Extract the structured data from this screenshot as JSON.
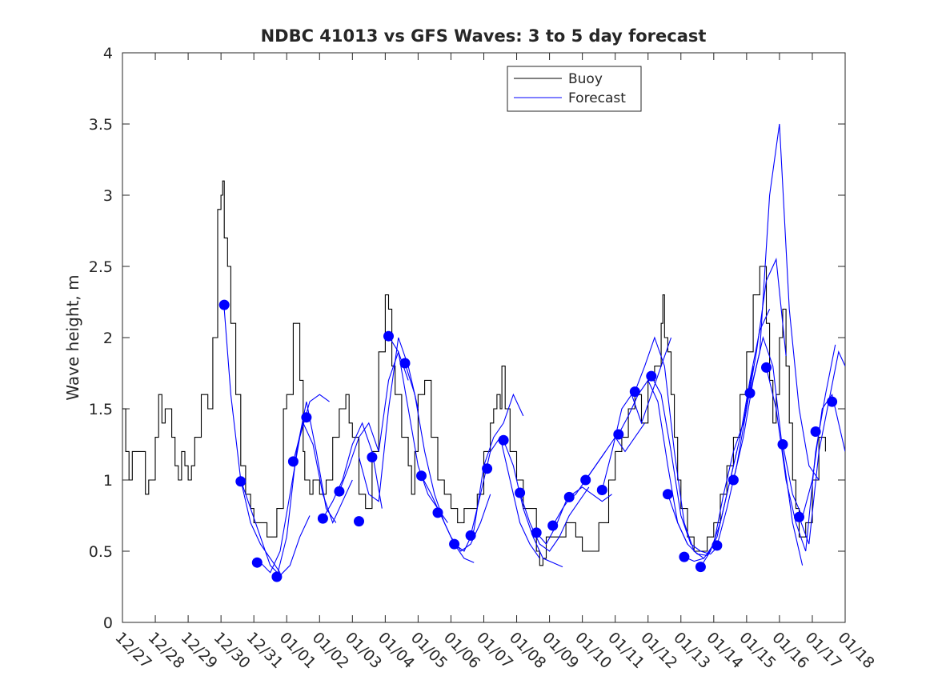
{
  "chart_data": {
    "type": "line",
    "title": "NDBC 41013 vs GFS Waves: 3 to 5 day forecast",
    "xlabel": "",
    "ylabel": "Wave height, m",
    "ylim": [
      0,
      4
    ],
    "yticks": [
      0,
      0.5,
      1,
      1.5,
      2,
      2.5,
      3,
      3.5,
      4
    ],
    "ytick_labels": [
      "0",
      "0.5",
      "1",
      "1.5",
      "2",
      "2.5",
      "3",
      "3.5",
      "4"
    ],
    "xlim": [
      0,
      22
    ],
    "xtick_labels": [
      "12/27",
      "12/28",
      "12/29",
      "12/30",
      "12/31",
      "01/01",
      "01/02",
      "01/03",
      "01/04",
      "01/05",
      "01/06",
      "01/07",
      "01/08",
      "01/09",
      "01/10",
      "01/11",
      "01/12",
      "01/13",
      "01/14",
      "01/15",
      "01/16",
      "01/17",
      "01/18"
    ],
    "legend": {
      "position": "top-center",
      "entries": [
        "Buoy",
        "Forecast"
      ]
    },
    "colors": {
      "buoy": "#000000",
      "forecast": "#0000ff",
      "axes": "#262626"
    },
    "buoy": {
      "name": "Buoy",
      "x": [
        0,
        0.1,
        0.2,
        0.3,
        0.5,
        0.7,
        0.8,
        1.0,
        1.1,
        1.2,
        1.3,
        1.5,
        1.6,
        1.7,
        1.8,
        1.9,
        2.0,
        2.1,
        2.2,
        2.4,
        2.6,
        2.75,
        2.9,
        3.0,
        3.05,
        3.1,
        3.2,
        3.3,
        3.45,
        3.6,
        3.75,
        3.9,
        4.0,
        4.2,
        4.4,
        4.5,
        4.7,
        4.9,
        5.0,
        5.2,
        5.4,
        5.5,
        5.55,
        5.7,
        5.8,
        6.0,
        6.2,
        6.4,
        6.6,
        6.8,
        6.9,
        7.0,
        7.2,
        7.4,
        7.6,
        7.8,
        8.0,
        8.1,
        8.2,
        8.3,
        8.5,
        8.7,
        8.8,
        8.9,
        9.0,
        9.2,
        9.4,
        9.6,
        9.8,
        10.0,
        10.2,
        10.4,
        10.6,
        10.8,
        11.0,
        11.2,
        11.3,
        11.4,
        11.5,
        11.55,
        11.65,
        11.8,
        12.0,
        12.2,
        12.4,
        12.6,
        12.7,
        12.8,
        12.9,
        13.0,
        13.2,
        13.5,
        13.8,
        14.0,
        14.2,
        14.5,
        14.8,
        15.0,
        15.2,
        15.4,
        15.6,
        15.8,
        16.0,
        16.2,
        16.4,
        16.45,
        16.5,
        16.6,
        16.7,
        16.8,
        16.9,
        17.0,
        17.2,
        17.4,
        17.6,
        17.8,
        18.0,
        18.2,
        18.4,
        18.6,
        18.8,
        19.0,
        19.2,
        19.4,
        19.6,
        19.7,
        19.8,
        19.9,
        20.0,
        20.1,
        20.2,
        20.3,
        20.4,
        20.5,
        20.6,
        20.8,
        21.0,
        21.2,
        21.4
      ],
      "values": [
        1.5,
        1.2,
        1.0,
        1.2,
        1.2,
        0.9,
        1.0,
        1.3,
        1.6,
        1.4,
        1.5,
        1.3,
        1.1,
        1.0,
        1.2,
        1.1,
        1.0,
        1.1,
        1.3,
        1.6,
        1.5,
        2.0,
        2.9,
        3.0,
        3.1,
        2.7,
        2.5,
        2.1,
        1.6,
        1.1,
        0.9,
        0.8,
        0.7,
        0.7,
        0.6,
        0.6,
        0.8,
        1.5,
        1.6,
        2.1,
        1.7,
        1.2,
        1.0,
        0.9,
        1.0,
        0.9,
        1.0,
        1.3,
        1.5,
        1.6,
        1.4,
        1.3,
        0.9,
        0.8,
        1.2,
        1.9,
        2.3,
        2.2,
        1.8,
        1.6,
        1.3,
        1.1,
        0.9,
        1.2,
        1.6,
        1.7,
        1.3,
        1.0,
        0.9,
        0.8,
        0.7,
        0.8,
        0.8,
        0.9,
        1.2,
        1.4,
        1.5,
        1.6,
        1.5,
        1.8,
        1.5,
        1.2,
        1.0,
        0.8,
        0.8,
        0.5,
        0.4,
        0.45,
        0.6,
        0.6,
        0.6,
        0.7,
        0.6,
        0.5,
        0.5,
        0.7,
        1.0,
        1.2,
        1.3,
        1.5,
        1.6,
        1.4,
        1.7,
        1.8,
        2.1,
        2.3,
        2.0,
        1.9,
        1.6,
        1.3,
        1.0,
        0.8,
        0.6,
        0.5,
        0.5,
        0.6,
        0.7,
        0.9,
        1.1,
        1.3,
        1.6,
        1.9,
        2.3,
        2.5,
        2.1,
        1.7,
        1.4,
        1.6,
        2.0,
        2.2,
        1.8,
        1.4,
        1.0,
        0.8,
        0.6,
        0.7,
        1.0,
        1.3,
        1.2
      ]
    },
    "forecast_series": [
      {
        "x": [
          3.1,
          3.3,
          3.6,
          3.9,
          4.2,
          4.5,
          4.8
        ],
        "values": [
          2.2,
          1.6,
          1.0,
          0.7,
          0.55,
          0.45,
          0.35
        ]
      },
      {
        "x": [
          3.6,
          3.9,
          4.2,
          4.5,
          4.8,
          5.1,
          5.4,
          5.7
        ],
        "values": [
          1.0,
          0.8,
          0.6,
          0.4,
          0.33,
          0.4,
          0.6,
          0.75
        ]
      },
      {
        "x": [
          4.2,
          4.5,
          4.8,
          5.1,
          5.4,
          5.7,
          6.0,
          6.3
        ],
        "values": [
          0.42,
          0.35,
          0.5,
          0.9,
          1.3,
          1.55,
          1.6,
          1.55
        ]
      },
      {
        "x": [
          4.7,
          5.0,
          5.3,
          5.6,
          5.9,
          6.2,
          6.5
        ],
        "values": [
          0.32,
          0.6,
          1.2,
          1.55,
          1.2,
          0.8,
          0.7
        ]
      },
      {
        "x": [
          5.2,
          5.5,
          5.8,
          6.1,
          6.4,
          6.7,
          7.0
        ],
        "values": [
          1.13,
          1.4,
          1.25,
          0.9,
          0.7,
          0.85,
          1.0
        ]
      },
      {
        "x": [
          6.1,
          6.4,
          6.7,
          7.0,
          7.3,
          7.6,
          7.9
        ],
        "values": [
          0.73,
          0.85,
          1.0,
          1.25,
          1.4,
          1.2,
          0.8
        ]
      },
      {
        "x": [
          6.6,
          6.9,
          7.2,
          7.5,
          7.8,
          8.1,
          8.4,
          8.7
        ],
        "values": [
          0.92,
          1.1,
          1.3,
          1.4,
          1.2,
          1.7,
          1.9,
          1.7
        ]
      },
      {
        "x": [
          7.2,
          7.5,
          7.8,
          8.1,
          8.4,
          8.7,
          9.0
        ],
        "values": [
          1.16,
          0.9,
          0.85,
          1.5,
          2.0,
          1.8,
          1.5
        ]
      },
      {
        "x": [
          8.1,
          8.4,
          8.7,
          9.0,
          9.3,
          9.6,
          9.9
        ],
        "values": [
          2.01,
          1.9,
          1.5,
          1.1,
          0.9,
          0.8,
          0.7
        ]
      },
      {
        "x": [
          8.6,
          8.9,
          9.2,
          9.5,
          9.8,
          10.1,
          10.4,
          10.7
        ],
        "values": [
          1.82,
          1.6,
          1.2,
          0.9,
          0.7,
          0.55,
          0.45,
          0.42
        ]
      },
      {
        "x": [
          9.1,
          9.4,
          9.7,
          10.0,
          10.3,
          10.6,
          10.9,
          11.2
        ],
        "values": [
          1.03,
          0.9,
          0.75,
          0.6,
          0.5,
          0.55,
          0.7,
          0.9
        ]
      },
      {
        "x": [
          10.1,
          10.4,
          10.7,
          11.0,
          11.3,
          11.6,
          11.9,
          12.2
        ],
        "values": [
          0.55,
          0.5,
          0.65,
          1.1,
          1.3,
          1.4,
          1.6,
          1.45
        ]
      },
      {
        "x": [
          10.6,
          10.9,
          11.2,
          11.5,
          11.8,
          12.1,
          12.4,
          12.7
        ],
        "values": [
          0.61,
          0.9,
          1.2,
          1.3,
          1.0,
          0.7,
          0.55,
          0.45
        ]
      },
      {
        "x": [
          11.6,
          11.9,
          12.2,
          12.5,
          12.8,
          13.1,
          13.4
        ],
        "values": [
          1.28,
          1.1,
          0.8,
          0.6,
          0.45,
          0.42,
          0.39
        ]
      },
      {
        "x": [
          12.1,
          12.4,
          12.7,
          13.0,
          13.3,
          13.6,
          13.9,
          14.2
        ],
        "values": [
          0.91,
          0.7,
          0.55,
          0.5,
          0.6,
          0.75,
          0.85,
          0.95
        ]
      },
      {
        "x": [
          12.6,
          12.9,
          13.2,
          13.5,
          13.8,
          14.1,
          14.4,
          14.7
        ],
        "values": [
          0.63,
          0.55,
          0.68,
          0.85,
          0.9,
          1.0,
          1.1,
          1.2
        ]
      },
      {
        "x": [
          13.1,
          13.4,
          13.7,
          14.0,
          14.3,
          14.6,
          14.9
        ],
        "values": [
          0.68,
          0.8,
          0.9,
          0.95,
          0.9,
          0.85,
          0.9
        ]
      },
      {
        "x": [
          14.1,
          14.4,
          14.7,
          15.0,
          15.3,
          15.6,
          15.9
        ],
        "values": [
          1.0,
          1.1,
          1.2,
          1.3,
          1.2,
          1.3,
          1.4
        ]
      },
      {
        "x": [
          14.6,
          14.9,
          15.2,
          15.5,
          15.8,
          16.1,
          16.4,
          16.7
        ],
        "values": [
          0.93,
          1.2,
          1.5,
          1.6,
          1.4,
          1.6,
          1.8,
          2.0
        ]
      },
      {
        "x": [
          15.1,
          15.4,
          15.7,
          16.0,
          16.3,
          16.6,
          16.9,
          17.2
        ],
        "values": [
          1.32,
          1.45,
          1.6,
          1.7,
          1.55,
          1.1,
          0.7,
          0.55
        ]
      },
      {
        "x": [
          15.6,
          15.9,
          16.2,
          16.5,
          16.8,
          17.1,
          17.4,
          17.7
        ],
        "values": [
          1.62,
          1.8,
          2.0,
          1.8,
          1.2,
          0.7,
          0.5,
          0.45
        ]
      },
      {
        "x": [
          16.1,
          16.4,
          16.7,
          17.0,
          17.3,
          17.6,
          17.9,
          18.2
        ],
        "values": [
          1.73,
          1.6,
          1.2,
          0.75,
          0.55,
          0.5,
          0.48,
          0.55
        ]
      },
      {
        "x": [
          16.6,
          16.9,
          17.2,
          17.5,
          17.8,
          18.1,
          18.4,
          18.7
        ],
        "values": [
          0.9,
          0.7,
          0.55,
          0.48,
          0.47,
          0.6,
          0.9,
          1.2
        ]
      },
      {
        "x": [
          17.1,
          17.4,
          17.7,
          18.0,
          18.3,
          18.6,
          18.9,
          19.2
        ],
        "values": [
          0.46,
          0.43,
          0.45,
          0.55,
          0.9,
          1.2,
          1.4,
          1.8
        ]
      },
      {
        "x": [
          17.6,
          17.9,
          18.2,
          18.5,
          18.8,
          19.1,
          19.4,
          19.7
        ],
        "values": [
          0.39,
          0.5,
          0.7,
          1.0,
          1.3,
          1.7,
          2.05,
          2.2
        ]
      },
      {
        "x": [
          18.1,
          18.4,
          18.7,
          19.0,
          19.3,
          19.6,
          19.9,
          20.2
        ],
        "values": [
          0.54,
          0.8,
          1.1,
          1.5,
          1.9,
          2.4,
          2.55,
          1.87
        ]
      },
      {
        "x": [
          18.6,
          18.9,
          19.2,
          19.5,
          19.8,
          20.1,
          20.4,
          20.7
        ],
        "values": [
          1.0,
          1.3,
          1.7,
          2.0,
          1.8,
          1.2,
          0.7,
          0.4
        ]
      },
      {
        "x": [
          19.1,
          19.4,
          19.7,
          20.0,
          20.3,
          20.6,
          20.9,
          21.2
        ],
        "values": [
          1.61,
          1.9,
          3.0,
          3.5,
          2.2,
          1.5,
          1.1,
          1.0
        ]
      },
      {
        "x": [
          19.6,
          19.9,
          20.2,
          20.5,
          20.8,
          21.1,
          21.4,
          21.7
        ],
        "values": [
          1.79,
          1.5,
          1.0,
          0.7,
          0.5,
          1.2,
          1.6,
          1.95
        ]
      },
      {
        "x": [
          20.1,
          20.4,
          20.7,
          21.0,
          21.3,
          21.6,
          21.9,
          22.0
        ],
        "values": [
          1.25,
          0.9,
          0.74,
          1.0,
          1.5,
          1.6,
          1.3,
          1.2
        ]
      },
      {
        "x": [
          20.6,
          20.9,
          21.2,
          21.5,
          21.8,
          22.0
        ],
        "values": [
          0.74,
          0.55,
          1.2,
          1.55,
          1.9,
          1.8
        ]
      }
    ],
    "forecast_markers": {
      "x": [
        3.1,
        3.6,
        4.1,
        4.7,
        5.2,
        5.6,
        6.1,
        6.6,
        7.2,
        7.6,
        8.1,
        8.6,
        9.1,
        9.6,
        10.1,
        10.6,
        11.1,
        11.6,
        12.1,
        12.6,
        13.1,
        13.6,
        14.1,
        14.6,
        15.1,
        15.6,
        16.1,
        16.6,
        17.1,
        17.6,
        18.1,
        18.6,
        19.1,
        19.6,
        20.1,
        20.6,
        21.1,
        21.6
      ],
      "values": [
        2.23,
        0.99,
        0.42,
        0.32,
        1.13,
        1.44,
        0.73,
        0.92,
        0.71,
        1.16,
        2.01,
        1.82,
        1.03,
        0.77,
        0.55,
        0.61,
        1.08,
        1.28,
        0.91,
        0.63,
        0.68,
        0.88,
        1.0,
        0.93,
        1.32,
        1.62,
        1.73,
        0.9,
        0.46,
        0.39,
        0.54,
        1.0,
        1.61,
        1.79,
        1.25,
        0.74,
        1.34,
        1.55
      ]
    }
  }
}
